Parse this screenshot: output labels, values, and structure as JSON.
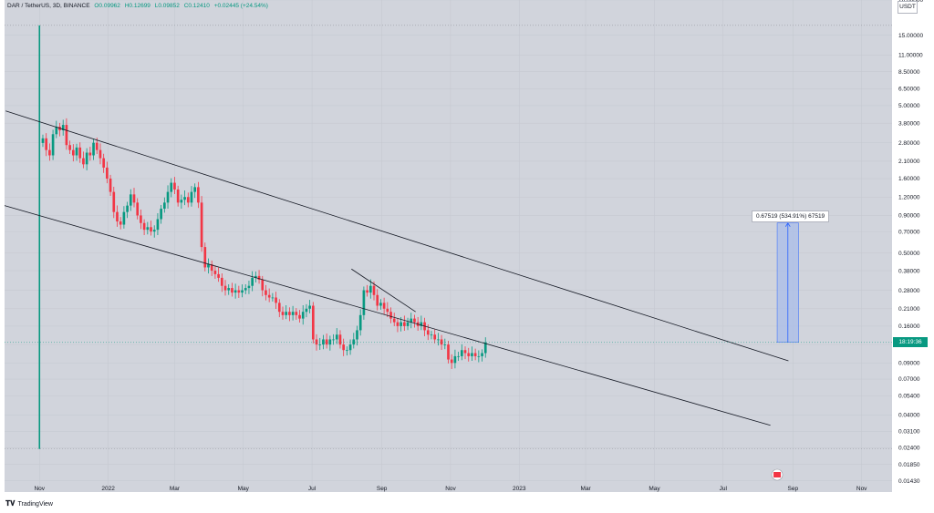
{
  "header": {
    "symbol": "DAR / TetherUS, 3D, BINANCE",
    "open": "O0.09962",
    "high": "H0.12699",
    "low": "L0.09852",
    "close": "C0.12410",
    "change": "+0.02445 (+24.54%)"
  },
  "currency": "USDT",
  "price_tag": "18:19:36",
  "measure": {
    "label": "0.67519 (534.91%) 67519",
    "from_price": 0.1241,
    "to_price": 0.8,
    "from_date": "2023-08-18",
    "to_date": "2023-09-06",
    "fill_color": "#a9bde9",
    "line_color": "#2962ff"
  },
  "brand": {
    "name": "TradingView",
    "icon": "tradingview-logo-icon"
  },
  "colors": {
    "up": "#089981",
    "down": "#f23645",
    "grid": "#c6c9d1"
  },
  "chart_data": {
    "type": "candlestick",
    "ylabel": "",
    "xlabel": "",
    "yscale": "log",
    "ylim": [
      0.012,
      26.0
    ],
    "xlim": [
      "2021-10-01",
      "2023-11-28"
    ],
    "y_ticks": [
      "26.00000",
      "15.00000",
      "11.00000",
      "8.50000",
      "6.50000",
      "5.00000",
      "3.80000",
      "2.80000",
      "2.10000",
      "1.60000",
      "1.20000",
      "0.90000",
      "0.70000",
      "0.50000",
      "0.38000",
      "0.28000",
      "0.21000",
      "0.16000",
      "0.12000",
      "0.09000",
      "0.07000",
      "0.05400",
      "0.04000",
      "0.03100",
      "0.02400",
      "0.01850",
      "0.01430"
    ],
    "x_ticks": [
      {
        "label": "Nov",
        "date": "2021-11-01"
      },
      {
        "label": "2022",
        "date": "2022-01-01"
      },
      {
        "label": "Mar",
        "date": "2022-03-01"
      },
      {
        "label": "May",
        "date": "2022-05-01"
      },
      {
        "label": "Jul",
        "date": "2022-07-01"
      },
      {
        "label": "Sep",
        "date": "2022-09-01"
      },
      {
        "label": "Nov",
        "date": "2022-11-01"
      },
      {
        "label": "2023",
        "date": "2023-01-01"
      },
      {
        "label": "Mar",
        "date": "2023-03-01"
      },
      {
        "label": "May",
        "date": "2023-05-01"
      },
      {
        "label": "Jul",
        "date": "2023-07-01"
      },
      {
        "label": "Sep",
        "date": "2023-09-01"
      },
      {
        "label": "Nov",
        "date": "2023-11-01"
      }
    ],
    "start_date": "2021-11-01",
    "interval_days": 3,
    "closes": [
      3.0,
      2.5,
      2.3,
      3.2,
      3.6,
      3.4,
      3.7,
      2.7,
      2.5,
      2.3,
      2.6,
      2.2,
      2.0,
      2.4,
      2.3,
      2.8,
      2.5,
      2.2,
      1.9,
      1.6,
      1.3,
      0.95,
      0.82,
      0.78,
      0.95,
      1.05,
      1.25,
      1.1,
      0.9,
      0.8,
      0.72,
      0.75,
      0.7,
      0.72,
      0.85,
      1.0,
      1.1,
      1.3,
      1.5,
      1.35,
      1.1,
      1.15,
      1.2,
      1.1,
      1.3,
      1.4,
      1.1,
      0.55,
      0.4,
      0.42,
      0.38,
      0.36,
      0.34,
      0.3,
      0.28,
      0.29,
      0.27,
      0.28,
      0.27,
      0.28,
      0.29,
      0.3,
      0.34,
      0.35,
      0.33,
      0.28,
      0.26,
      0.25,
      0.25,
      0.23,
      0.2,
      0.19,
      0.2,
      0.19,
      0.2,
      0.19,
      0.18,
      0.2,
      0.21,
      0.22,
      0.13,
      0.12,
      0.12,
      0.13,
      0.12,
      0.13,
      0.13,
      0.14,
      0.12,
      0.11,
      0.11,
      0.12,
      0.13,
      0.15,
      0.19,
      0.28,
      0.27,
      0.3,
      0.26,
      0.22,
      0.23,
      0.21,
      0.2,
      0.18,
      0.17,
      0.16,
      0.17,
      0.16,
      0.17,
      0.18,
      0.17,
      0.16,
      0.17,
      0.15,
      0.14,
      0.14,
      0.13,
      0.13,
      0.12,
      0.12,
      0.095,
      0.09,
      0.1,
      0.1,
      0.11,
      0.105,
      0.1,
      0.105,
      0.1,
      0.1,
      0.105,
      0.124
    ],
    "annotations": [
      "descending channel upper trendline",
      "descending channel lower trendline",
      "internal trendline"
    ],
    "lines": [
      {
        "name": "channel-upper",
        "from": {
          "date": "2021-10-02",
          "price": 4.6
        },
        "to": {
          "date": "2023-08-28",
          "price": 0.093
        }
      },
      {
        "name": "channel-lower",
        "from": {
          "date": "2021-10-01",
          "price": 1.05
        },
        "to": {
          "date": "2023-08-12",
          "price": 0.034
        }
      },
      {
        "name": "internal-trend",
        "from": {
          "date": "2022-08-05",
          "price": 0.39
        },
        "to": {
          "date": "2022-10-01",
          "price": 0.2
        }
      }
    ],
    "spike": {
      "date": "2021-11-01",
      "high": 17.5,
      "low": 0.0235
    }
  }
}
